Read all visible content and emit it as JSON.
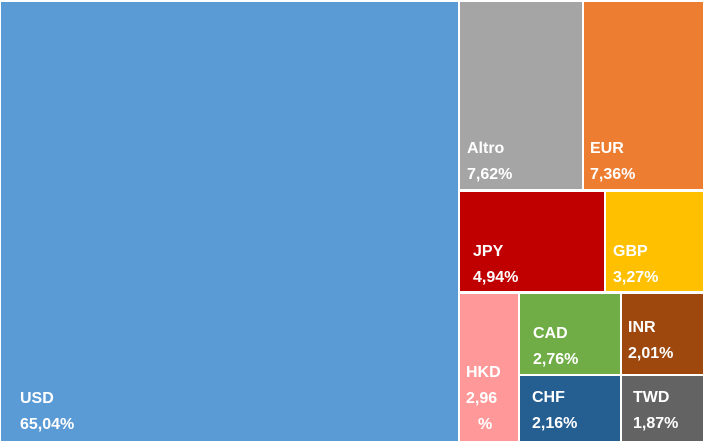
{
  "chart_data": {
    "type": "treemap",
    "items": [
      {
        "label": "USD",
        "value": 65.04,
        "value_text": "65,04%",
        "color": "#5B9BD5"
      },
      {
        "label": "Altro",
        "value": 7.62,
        "value_text": "7,62%",
        "color": "#A5A5A5"
      },
      {
        "label": "EUR",
        "value": 7.36,
        "value_text": "7,36%",
        "color": "#ED7D31"
      },
      {
        "label": "JPY",
        "value": 4.94,
        "value_text": "4,94%",
        "color": "#C00000"
      },
      {
        "label": "GBP",
        "value": 3.27,
        "value_text": "3,27%",
        "color": "#FFC000"
      },
      {
        "label": "HKD",
        "value": 2.96,
        "value_text": "2,96\n%",
        "color": "#FF9999"
      },
      {
        "label": "CAD",
        "value": 2.76,
        "value_text": "2,76%",
        "color": "#70AD47"
      },
      {
        "label": "INR",
        "value": 2.01,
        "value_text": "2,01%",
        "color": "#9E480E"
      },
      {
        "label": "CHF",
        "value": 2.16,
        "value_text": "2,16%",
        "color": "#255E91"
      },
      {
        "label": "TWD",
        "value": 1.87,
        "value_text": "1,87%",
        "color": "#636363"
      }
    ]
  }
}
